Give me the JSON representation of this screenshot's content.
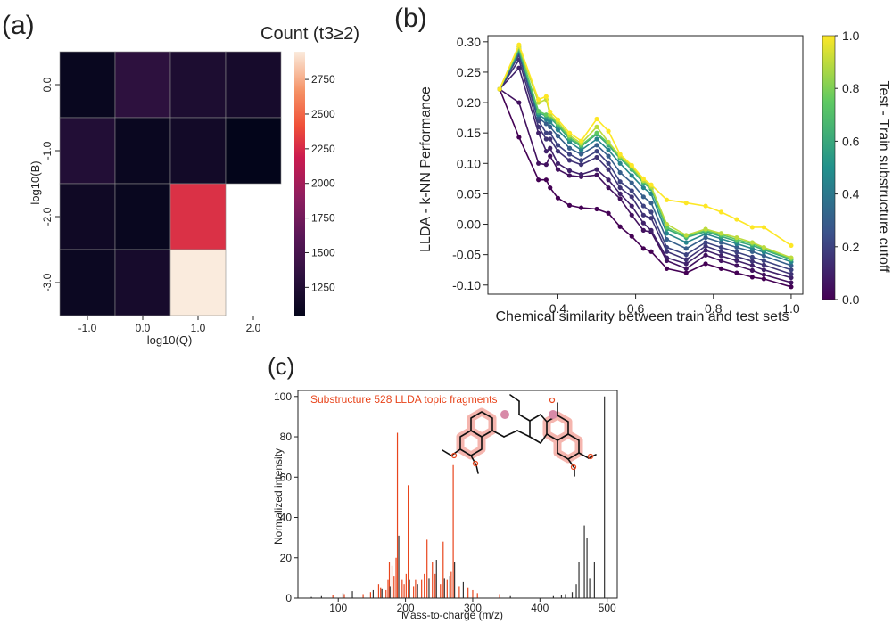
{
  "panels": {
    "a": "(a)",
    "b": "(b)",
    "c": "(c)"
  },
  "chart_data": [
    {
      "type": "heatmap",
      "panel": "(a)",
      "xlabel": "log10(Q)",
      "ylabel": "log10(B)",
      "x_ticks": [
        "-1.0",
        "0.0",
        "1.0",
        "2.0"
      ],
      "y_ticks": [
        "0.0",
        "-1.0",
        "-2.0",
        "-3.0"
      ],
      "colorbar_label": "Count (t3≥2)",
      "colorbar_ticks": [
        1250,
        1500,
        1750,
        2000,
        2250,
        2500,
        2750
      ],
      "vmin": 1040,
      "vmax": 2950,
      "values": [
        [
          1080,
          1330,
          1220,
          1180
        ],
        [
          1260,
          1090,
          1150,
          1040
        ],
        [
          1130,
          1080,
          2280,
          null
        ],
        [
          1100,
          1180,
          2950,
          null
        ]
      ]
    },
    {
      "type": "line",
      "panel": "(b)",
      "xlabel": "Chemical similarity between train and test sets",
      "ylabel": "LLDA - k-NN Performance",
      "xlim": [
        0.22,
        1.03
      ],
      "ylim": [
        -0.115,
        0.31
      ],
      "x_ticks": [
        "0.4",
        "0.6",
        "0.8",
        "1.0"
      ],
      "y_ticks": [
        "0.30",
        "0.25",
        "0.20",
        "0.15",
        "0.10",
        "0.05",
        "0.00",
        "-0.05",
        "-0.10"
      ],
      "colorbar_label": "Test - Train substructure cutoff",
      "colorbar_ticks": [
        "0.0",
        "0.2",
        "0.4",
        "0.6",
        "0.8",
        "1.0"
      ],
      "x": [
        0.25,
        0.3,
        0.35,
        0.37,
        0.38,
        0.4,
        0.43,
        0.46,
        0.5,
        0.53,
        0.56,
        0.59,
        0.62,
        0.64,
        0.68,
        0.73,
        0.78,
        0.82,
        0.86,
        0.9,
        0.93,
        1.0
      ],
      "series": [
        {
          "cutoff": 0.0,
          "values": [
            0.222,
            0.143,
            0.073,
            0.073,
            0.06,
            0.043,
            0.031,
            0.027,
            0.025,
            0.018,
            -0.004,
            -0.02,
            -0.04,
            -0.045,
            -0.073,
            -0.08,
            -0.065,
            -0.073,
            -0.08,
            -0.087,
            -0.09,
            -0.103
          ]
        },
        {
          "cutoff": 0.05,
          "values": [
            0.222,
            0.2,
            0.1,
            0.098,
            0.112,
            0.09,
            0.08,
            0.078,
            0.081,
            0.06,
            0.042,
            0.015,
            -0.01,
            -0.013,
            -0.06,
            -0.073,
            -0.051,
            -0.06,
            -0.068,
            -0.076,
            -0.083,
            -0.096
          ]
        },
        {
          "cutoff": 0.1,
          "values": [
            0.222,
            0.257,
            0.15,
            0.12,
            0.125,
            0.1,
            0.088,
            0.082,
            0.09,
            0.073,
            0.05,
            0.03,
            0.002,
            -0.01,
            -0.055,
            -0.065,
            -0.043,
            -0.052,
            -0.06,
            -0.068,
            -0.075,
            -0.088
          ]
        },
        {
          "cutoff": 0.15,
          "values": [
            0.222,
            0.27,
            0.16,
            0.14,
            0.14,
            0.12,
            0.105,
            0.098,
            0.11,
            0.09,
            0.06,
            0.045,
            0.015,
            0.01,
            -0.045,
            -0.058,
            -0.036,
            -0.045,
            -0.053,
            -0.061,
            -0.067,
            -0.082
          ]
        },
        {
          "cutoff": 0.2,
          "values": [
            0.222,
            0.278,
            0.17,
            0.15,
            0.15,
            0.13,
            0.115,
            0.105,
            0.12,
            0.1,
            0.07,
            0.055,
            0.03,
            0.02,
            -0.038,
            -0.05,
            -0.03,
            -0.038,
            -0.046,
            -0.054,
            -0.06,
            -0.075
          ]
        },
        {
          "cutoff": 0.3,
          "values": [
            0.222,
            0.283,
            0.175,
            0.165,
            0.16,
            0.145,
            0.125,
            0.115,
            0.13,
            0.112,
            0.085,
            0.068,
            0.045,
            0.035,
            -0.025,
            -0.04,
            -0.022,
            -0.03,
            -0.038,
            -0.045,
            -0.052,
            -0.068
          ]
        },
        {
          "cutoff": 0.45,
          "values": [
            0.222,
            0.285,
            0.18,
            0.172,
            0.168,
            0.155,
            0.135,
            0.122,
            0.14,
            0.122,
            0.1,
            0.08,
            0.06,
            0.05,
            -0.015,
            -0.03,
            -0.016,
            -0.024,
            -0.032,
            -0.04,
            -0.046,
            -0.062
          ]
        },
        {
          "cutoff": 0.6,
          "values": [
            0.222,
            0.287,
            0.183,
            0.178,
            0.175,
            0.162,
            0.14,
            0.128,
            0.148,
            0.13,
            0.108,
            0.09,
            0.068,
            0.058,
            -0.008,
            -0.022,
            -0.012,
            -0.02,
            -0.028,
            -0.035,
            -0.042,
            -0.058
          ]
        },
        {
          "cutoff": 0.75,
          "values": [
            0.222,
            0.289,
            0.186,
            0.18,
            0.178,
            0.165,
            0.143,
            0.13,
            0.15,
            0.133,
            0.11,
            0.092,
            0.07,
            0.06,
            -0.005,
            -0.02,
            -0.01,
            -0.017,
            -0.025,
            -0.032,
            -0.04,
            -0.057
          ]
        },
        {
          "cutoff": 0.9,
          "values": [
            0.222,
            0.292,
            0.2,
            0.205,
            0.18,
            0.168,
            0.146,
            0.133,
            0.16,
            0.135,
            0.112,
            0.095,
            0.072,
            0.062,
            0.0,
            -0.018,
            -0.008,
            -0.015,
            -0.022,
            -0.03,
            -0.038,
            -0.055
          ]
        },
        {
          "cutoff": 1.0,
          "values": [
            0.222,
            0.295,
            0.205,
            0.21,
            0.185,
            0.172,
            0.15,
            0.137,
            0.173,
            0.153,
            0.115,
            0.097,
            0.075,
            0.065,
            0.04,
            0.035,
            0.03,
            0.02,
            0.008,
            -0.005,
            -0.005,
            -0.035
          ]
        }
      ]
    },
    {
      "type": "bar",
      "panel": "(c)",
      "title": "Substructure 528 LLDA topic fragments",
      "xlabel": "Mass-to-charge (m/z)",
      "ylabel": "Normalized intensity",
      "xlim": [
        40,
        515
      ],
      "ylim": [
        0,
        103
      ],
      "x_ticks": [
        "100",
        "200",
        "300",
        "400",
        "500"
      ],
      "y_ticks": [
        "0",
        "20",
        "40",
        "60",
        "80",
        "100"
      ],
      "colors": {
        "fragment": "#e8451c",
        "other": "#333333"
      },
      "peaks": [
        {
          "mz": 60,
          "i": 0.6,
          "c": "other"
        },
        {
          "mz": 75,
          "i": 1.0,
          "c": "other"
        },
        {
          "mz": 92,
          "i": 1.5,
          "c": "fragment"
        },
        {
          "mz": 107,
          "i": 2.5,
          "c": "other"
        },
        {
          "mz": 109,
          "i": 2.0,
          "c": "fragment"
        },
        {
          "mz": 121,
          "i": 3.5,
          "c": "other"
        },
        {
          "mz": 137,
          "i": 2.0,
          "c": "fragment"
        },
        {
          "mz": 148,
          "i": 3.0,
          "c": "fragment"
        },
        {
          "mz": 152,
          "i": 4.0,
          "c": "other"
        },
        {
          "mz": 160,
          "i": 7.0,
          "c": "fragment"
        },
        {
          "mz": 163,
          "i": 5.0,
          "c": "fragment"
        },
        {
          "mz": 165,
          "i": 4.5,
          "c": "other"
        },
        {
          "mz": 171,
          "i": 4.0,
          "c": "fragment"
        },
        {
          "mz": 174,
          "i": 9.0,
          "c": "fragment"
        },
        {
          "mz": 176,
          "i": 18.0,
          "c": "fragment"
        },
        {
          "mz": 177,
          "i": 6.0,
          "c": "other"
        },
        {
          "mz": 180,
          "i": 16.0,
          "c": "fragment"
        },
        {
          "mz": 183,
          "i": 11.0,
          "c": "fragment"
        },
        {
          "mz": 186,
          "i": 20.0,
          "c": "fragment"
        },
        {
          "mz": 188,
          "i": 82.0,
          "c": "fragment"
        },
        {
          "mz": 190,
          "i": 31.0,
          "c": "other"
        },
        {
          "mz": 195,
          "i": 9.0,
          "c": "fragment"
        },
        {
          "mz": 198,
          "i": 7.0,
          "c": "fragment"
        },
        {
          "mz": 201,
          "i": 12.0,
          "c": "fragment"
        },
        {
          "mz": 204,
          "i": 56.0,
          "c": "fragment"
        },
        {
          "mz": 206,
          "i": 9.0,
          "c": "other"
        },
        {
          "mz": 212,
          "i": 6.0,
          "c": "fragment"
        },
        {
          "mz": 215,
          "i": 9.0,
          "c": "fragment"
        },
        {
          "mz": 218,
          "i": 7.0,
          "c": "other"
        },
        {
          "mz": 224,
          "i": 9.0,
          "c": "fragment"
        },
        {
          "mz": 228,
          "i": 12.0,
          "c": "fragment"
        },
        {
          "mz": 232,
          "i": 29.0,
          "c": "fragment"
        },
        {
          "mz": 235,
          "i": 10.0,
          "c": "other"
        },
        {
          "mz": 240,
          "i": 18.0,
          "c": "fragment"
        },
        {
          "mz": 244,
          "i": 12.0,
          "c": "fragment"
        },
        {
          "mz": 246,
          "i": 19.0,
          "c": "other"
        },
        {
          "mz": 252,
          "i": 7.0,
          "c": "fragment"
        },
        {
          "mz": 256,
          "i": 28.0,
          "c": "fragment"
        },
        {
          "mz": 258,
          "i": 10.0,
          "c": "other"
        },
        {
          "mz": 262,
          "i": 9.0,
          "c": "fragment"
        },
        {
          "mz": 266,
          "i": 11.0,
          "c": "other"
        },
        {
          "mz": 268,
          "i": 13.0,
          "c": "fragment"
        },
        {
          "mz": 271,
          "i": 66.0,
          "c": "fragment"
        },
        {
          "mz": 273,
          "i": 18.0,
          "c": "other"
        },
        {
          "mz": 280,
          "i": 6.0,
          "c": "fragment"
        },
        {
          "mz": 286,
          "i": 8.0,
          "c": "other"
        },
        {
          "mz": 293,
          "i": 5.0,
          "c": "fragment"
        },
        {
          "mz": 300,
          "i": 4.0,
          "c": "fragment"
        },
        {
          "mz": 307,
          "i": 2.5,
          "c": "fragment"
        },
        {
          "mz": 340,
          "i": 2.0,
          "c": "fragment"
        },
        {
          "mz": 356,
          "i": 1.0,
          "c": "other"
        },
        {
          "mz": 420,
          "i": 1.0,
          "c": "other"
        },
        {
          "mz": 432,
          "i": 1.5,
          "c": "other"
        },
        {
          "mz": 438,
          "i": 2.0,
          "c": "other"
        },
        {
          "mz": 448,
          "i": 3.0,
          "c": "other"
        },
        {
          "mz": 454,
          "i": 7.0,
          "c": "other"
        },
        {
          "mz": 458,
          "i": 18.0,
          "c": "other"
        },
        {
          "mz": 466,
          "i": 36.0,
          "c": "other"
        },
        {
          "mz": 470,
          "i": 30.0,
          "c": "other"
        },
        {
          "mz": 474,
          "i": 10.0,
          "c": "other"
        },
        {
          "mz": 481,
          "i": 18.0,
          "c": "other"
        },
        {
          "mz": 496,
          "i": 100.0,
          "c": "other"
        }
      ]
    }
  ]
}
